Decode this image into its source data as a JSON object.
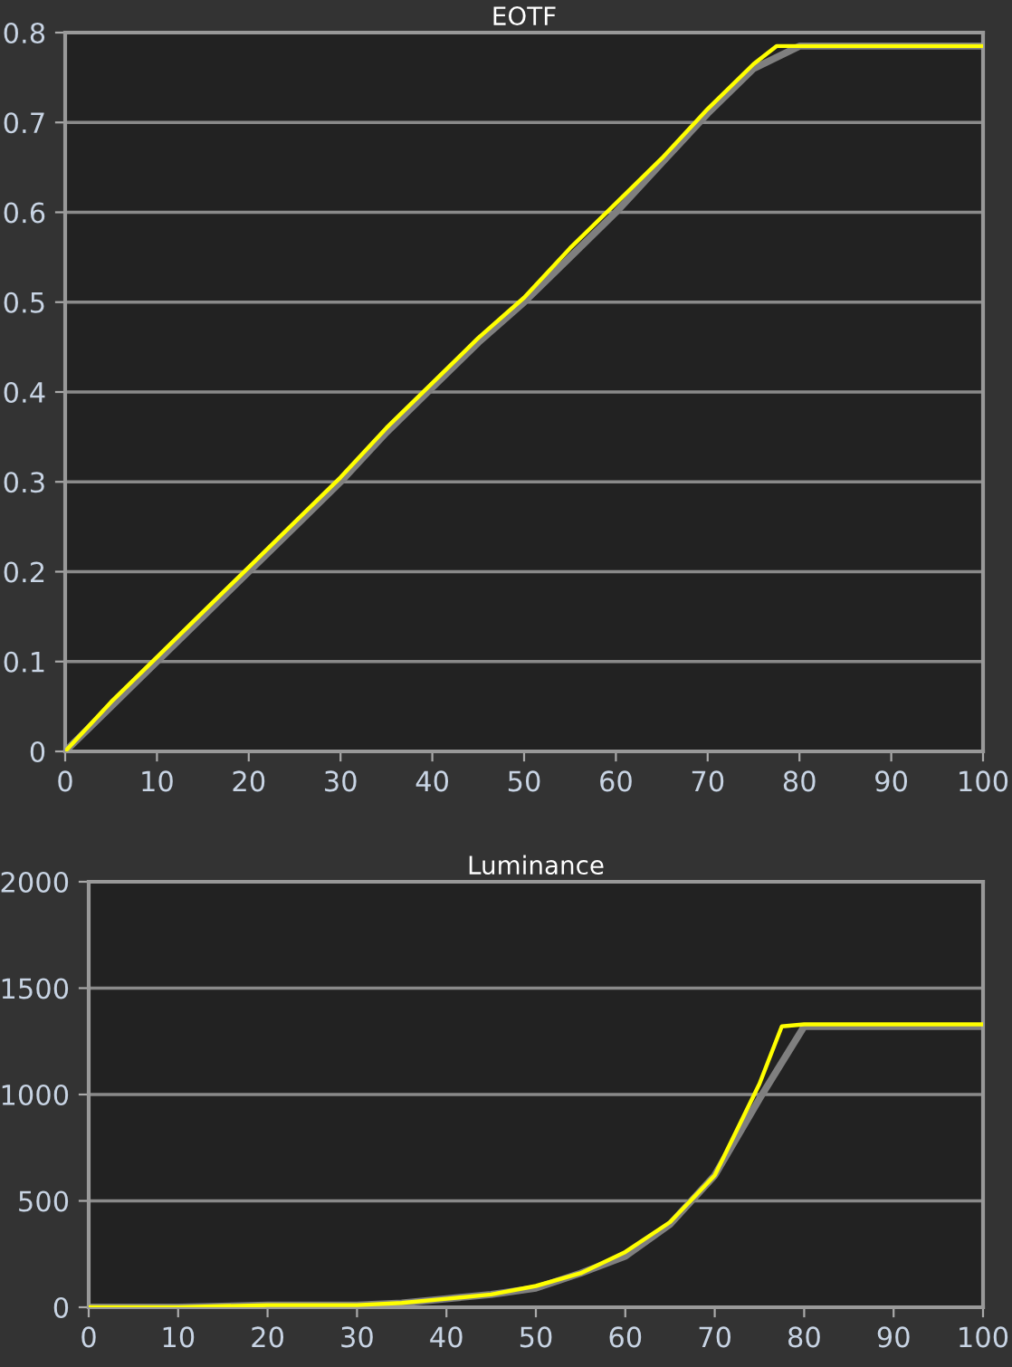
{
  "chart_data": [
    {
      "type": "line",
      "title": "EOTF",
      "xlim": [
        0,
        100
      ],
      "ylim": [
        0,
        0.8
      ],
      "xticks": [
        0,
        10,
        20,
        30,
        40,
        50,
        60,
        70,
        80,
        90,
        100
      ],
      "yticks": [
        0,
        0.1,
        0.2,
        0.3,
        0.4,
        0.5,
        0.6,
        0.7,
        0.8
      ],
      "grid": "y",
      "legend": false,
      "series": [
        {
          "color": "#ffff00",
          "x": [
            0,
            5,
            10,
            15,
            20,
            25,
            30,
            35,
            40,
            45,
            50,
            55,
            60,
            65,
            70,
            75,
            77.5,
            80,
            100
          ],
          "values": [
            0,
            0.055,
            0.105,
            0.155,
            0.205,
            0.255,
            0.305,
            0.36,
            0.41,
            0.46,
            0.505,
            0.56,
            0.61,
            0.66,
            0.715,
            0.765,
            0.785,
            0.785,
            0.785
          ]
        },
        {
          "color": "#7f7f7f",
          "x": [
            0,
            5,
            10,
            15,
            20,
            25,
            30,
            35,
            40,
            45,
            50,
            55,
            60,
            65,
            70,
            75,
            80,
            100
          ],
          "values": [
            0,
            0.05,
            0.1,
            0.15,
            0.2,
            0.25,
            0.3,
            0.355,
            0.405,
            0.455,
            0.5,
            0.55,
            0.6,
            0.655,
            0.71,
            0.76,
            0.785,
            0.785
          ]
        }
      ]
    },
    {
      "type": "line",
      "title": "Luminance",
      "xlim": [
        0,
        100
      ],
      "ylim": [
        0,
        2000
      ],
      "xticks": [
        0,
        10,
        20,
        30,
        40,
        50,
        60,
        70,
        80,
        90,
        100
      ],
      "yticks": [
        0,
        500,
        1000,
        1500,
        2000
      ],
      "grid": "y",
      "legend": false,
      "series": [
        {
          "color": "#ffff00",
          "x": [
            0,
            10,
            20,
            30,
            35,
            40,
            45,
            50,
            55,
            60,
            65,
            70,
            75,
            77.5,
            80,
            100
          ],
          "values": [
            0,
            0,
            10,
            10,
            20,
            40,
            60,
            100,
            160,
            260,
            400,
            620,
            1050,
            1320,
            1330,
            1330
          ]
        },
        {
          "color": "#7f7f7f",
          "x": [
            0,
            10,
            20,
            30,
            35,
            40,
            45,
            50,
            55,
            60,
            65,
            70,
            75,
            80,
            100
          ],
          "values": [
            0,
            0,
            10,
            10,
            20,
            40,
            60,
            90,
            160,
            240,
            390,
            620,
            980,
            1320,
            1320
          ]
        }
      ]
    }
  ]
}
